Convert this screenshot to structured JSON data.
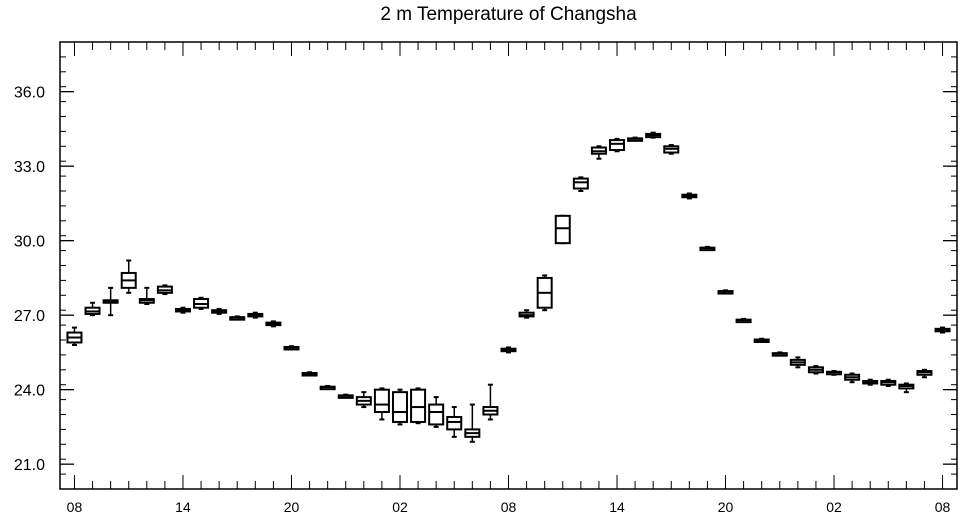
{
  "chart_data": {
    "type": "boxplot",
    "title": "2 m Temperature of Changsha",
    "xlabel": "",
    "ylabel": "",
    "ylim": [
      20.0,
      38.0
    ],
    "yticks": [
      21.0,
      24.0,
      27.0,
      30.0,
      33.0,
      36.0
    ],
    "yticklabels": [
      "21.0",
      "24.0",
      "27.0",
      "30.0",
      "33.0",
      "36.0"
    ],
    "xticks": [
      0,
      6,
      12,
      18,
      24,
      30,
      36,
      42,
      48
    ],
    "xticklabels": [
      "08",
      "14",
      "20",
      "02",
      "08",
      "14",
      "20",
      "02",
      "08"
    ],
    "xlim": [
      -0.8,
      48.8
    ],
    "grid": false,
    "boxes": [
      {
        "x": 0,
        "min": 25.8,
        "q1": 25.9,
        "median": 26.1,
        "q3": 26.3,
        "max": 26.5
      },
      {
        "x": 1,
        "min": 27.0,
        "q1": 27.05,
        "median": 27.15,
        "q3": 27.3,
        "max": 27.5
      },
      {
        "x": 2,
        "min": 27.0,
        "q1": 27.5,
        "median": 27.55,
        "q3": 27.6,
        "max": 28.1
      },
      {
        "x": 3,
        "min": 27.9,
        "q1": 28.1,
        "median": 28.4,
        "q3": 28.7,
        "max": 29.2
      },
      {
        "x": 4,
        "min": 27.45,
        "q1": 27.5,
        "median": 27.6,
        "q3": 27.65,
        "max": 28.1
      },
      {
        "x": 5,
        "min": 27.85,
        "q1": 27.9,
        "median": 28.0,
        "q3": 28.15,
        "max": 28.2
      },
      {
        "x": 6,
        "min": 27.1,
        "q1": 27.15,
        "median": 27.2,
        "q3": 27.25,
        "max": 27.3
      },
      {
        "x": 7,
        "min": 27.25,
        "q1": 27.3,
        "median": 27.45,
        "q3": 27.65,
        "max": 27.7
      },
      {
        "x": 8,
        "min": 27.05,
        "q1": 27.1,
        "median": 27.15,
        "q3": 27.2,
        "max": 27.25
      },
      {
        "x": 9,
        "min": 26.85,
        "q1": 26.88,
        "median": 26.9,
        "q3": 26.92,
        "max": 26.95
      },
      {
        "x": 10,
        "min": 26.9,
        "q1": 26.95,
        "median": 27.0,
        "q3": 27.05,
        "max": 27.1
      },
      {
        "x": 11,
        "min": 26.55,
        "q1": 26.6,
        "median": 26.65,
        "q3": 26.7,
        "max": 26.75
      },
      {
        "x": 12,
        "min": 25.65,
        "q1": 25.67,
        "median": 25.7,
        "q3": 25.72,
        "max": 25.75
      },
      {
        "x": 13,
        "min": 24.6,
        "q1": 24.62,
        "median": 24.65,
        "q3": 24.67,
        "max": 24.7
      },
      {
        "x": 14,
        "min": 24.05,
        "q1": 24.08,
        "median": 24.1,
        "q3": 24.12,
        "max": 24.15
      },
      {
        "x": 15,
        "min": 23.7,
        "q1": 23.72,
        "median": 23.75,
        "q3": 23.77,
        "max": 23.8
      },
      {
        "x": 16,
        "min": 23.3,
        "q1": 23.4,
        "median": 23.55,
        "q3": 23.7,
        "max": 23.9
      },
      {
        "x": 17,
        "min": 22.8,
        "q1": 23.1,
        "median": 23.4,
        "q3": 24.0,
        "max": 24.05
      },
      {
        "x": 18,
        "min": 22.6,
        "q1": 22.7,
        "median": 23.1,
        "q3": 23.9,
        "max": 24.0
      },
      {
        "x": 19,
        "min": 22.65,
        "q1": 22.7,
        "median": 23.3,
        "q3": 24.0,
        "max": 24.05
      },
      {
        "x": 20,
        "min": 22.5,
        "q1": 22.6,
        "median": 23.1,
        "q3": 23.4,
        "max": 23.7
      },
      {
        "x": 21,
        "min": 22.1,
        "q1": 22.4,
        "median": 22.7,
        "q3": 22.9,
        "max": 23.3
      },
      {
        "x": 22,
        "min": 21.9,
        "q1": 22.1,
        "median": 22.25,
        "q3": 22.4,
        "max": 23.4
      },
      {
        "x": 23,
        "min": 22.8,
        "q1": 23.0,
        "median": 23.15,
        "q3": 23.3,
        "max": 24.2
      },
      {
        "x": 24,
        "min": 25.5,
        "q1": 25.55,
        "median": 25.6,
        "q3": 25.65,
        "max": 25.7
      },
      {
        "x": 25,
        "min": 26.9,
        "q1": 26.95,
        "median": 27.0,
        "q3": 27.1,
        "max": 27.2
      },
      {
        "x": 26,
        "min": 27.2,
        "q1": 27.3,
        "median": 27.9,
        "q3": 28.5,
        "max": 28.6
      },
      {
        "x": 27,
        "min": 29.9,
        "q1": 29.9,
        "median": 30.5,
        "q3": 31.0,
        "max": 31.0
      },
      {
        "x": 28,
        "min": 32.0,
        "q1": 32.1,
        "median": 32.35,
        "q3": 32.5,
        "max": 32.55
      },
      {
        "x": 29,
        "min": 33.3,
        "q1": 33.5,
        "median": 33.6,
        "q3": 33.75,
        "max": 33.8
      },
      {
        "x": 30,
        "min": 33.6,
        "q1": 33.65,
        "median": 33.9,
        "q3": 34.05,
        "max": 34.1
      },
      {
        "x": 31,
        "min": 34.05,
        "q1": 34.08,
        "median": 34.1,
        "q3": 34.12,
        "max": 34.15
      },
      {
        "x": 32,
        "min": 34.15,
        "q1": 34.17,
        "median": 34.25,
        "q3": 34.3,
        "max": 34.35
      },
      {
        "x": 33,
        "min": 33.5,
        "q1": 33.55,
        "median": 33.7,
        "q3": 33.8,
        "max": 33.85
      },
      {
        "x": 34,
        "min": 31.7,
        "q1": 31.75,
        "median": 31.8,
        "q3": 31.85,
        "max": 31.9
      },
      {
        "x": 35,
        "min": 29.65,
        "q1": 29.67,
        "median": 29.7,
        "q3": 29.72,
        "max": 29.75
      },
      {
        "x": 36,
        "min": 27.9,
        "q1": 27.93,
        "median": 27.95,
        "q3": 27.97,
        "max": 28.0
      },
      {
        "x": 37,
        "min": 26.75,
        "q1": 26.77,
        "median": 26.8,
        "q3": 26.82,
        "max": 26.85
      },
      {
        "x": 38,
        "min": 25.95,
        "q1": 25.97,
        "median": 26.0,
        "q3": 26.02,
        "max": 26.05
      },
      {
        "x": 39,
        "min": 25.4,
        "q1": 25.42,
        "median": 25.45,
        "q3": 25.47,
        "max": 25.5
      },
      {
        "x": 40,
        "min": 24.9,
        "q1": 25.0,
        "median": 25.1,
        "q3": 25.2,
        "max": 25.3
      },
      {
        "x": 41,
        "min": 24.65,
        "q1": 24.7,
        "median": 24.8,
        "q3": 24.9,
        "max": 24.95
      },
      {
        "x": 42,
        "min": 24.6,
        "q1": 24.65,
        "median": 24.7,
        "q3": 24.72,
        "max": 24.75
      },
      {
        "x": 43,
        "min": 24.3,
        "q1": 24.4,
        "median": 24.5,
        "q3": 24.6,
        "max": 24.65
      },
      {
        "x": 44,
        "min": 24.2,
        "q1": 24.25,
        "median": 24.3,
        "q3": 24.35,
        "max": 24.4
      },
      {
        "x": 45,
        "min": 24.15,
        "q1": 24.2,
        "median": 24.3,
        "q3": 24.35,
        "max": 24.4
      },
      {
        "x": 46,
        "min": 23.9,
        "q1": 24.05,
        "median": 24.15,
        "q3": 24.2,
        "max": 24.25
      },
      {
        "x": 47,
        "min": 24.5,
        "q1": 24.6,
        "median": 24.7,
        "q3": 24.75,
        "max": 24.8
      },
      {
        "x": 48,
        "min": 26.3,
        "q1": 26.35,
        "median": 26.4,
        "q3": 26.45,
        "max": 26.5
      }
    ]
  }
}
